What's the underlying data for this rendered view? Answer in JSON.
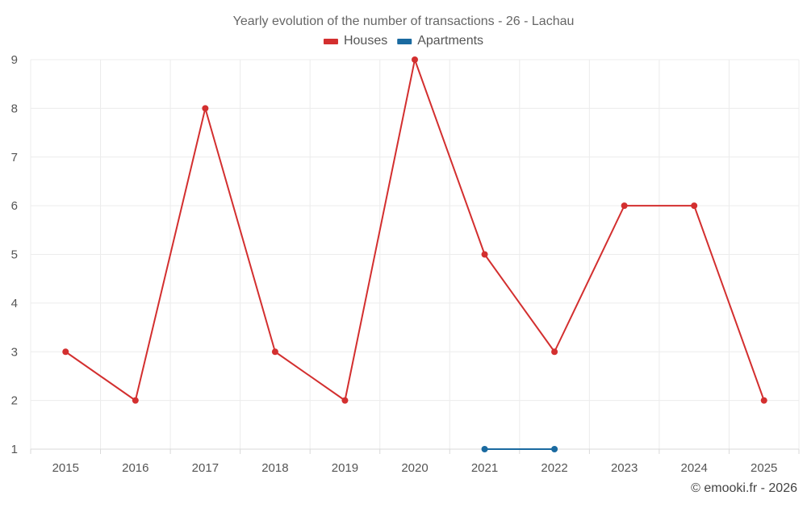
{
  "chart_data": {
    "type": "line",
    "title": "Yearly evolution of the number of transactions - 26 - Lachau",
    "xlabel": "",
    "ylabel": "",
    "categories": [
      "2015",
      "2016",
      "2017",
      "2018",
      "2019",
      "2020",
      "2021",
      "2022",
      "2023",
      "2024",
      "2025"
    ],
    "ylim": [
      1,
      9
    ],
    "yticks": [
      1,
      2,
      3,
      4,
      5,
      6,
      7,
      8,
      9
    ],
    "grid": true,
    "legend_position": "top-center",
    "series": [
      {
        "name": "Houses",
        "color": "#d32f2f",
        "values": [
          3,
          2,
          8,
          3,
          2,
          9,
          5,
          3,
          6,
          6,
          2
        ]
      },
      {
        "name": "Apartments",
        "color": "#1a6aa0",
        "values": [
          null,
          null,
          null,
          null,
          null,
          null,
          1,
          1,
          null,
          null,
          null
        ]
      }
    ]
  },
  "credit": "© emooki.fr - 2026"
}
